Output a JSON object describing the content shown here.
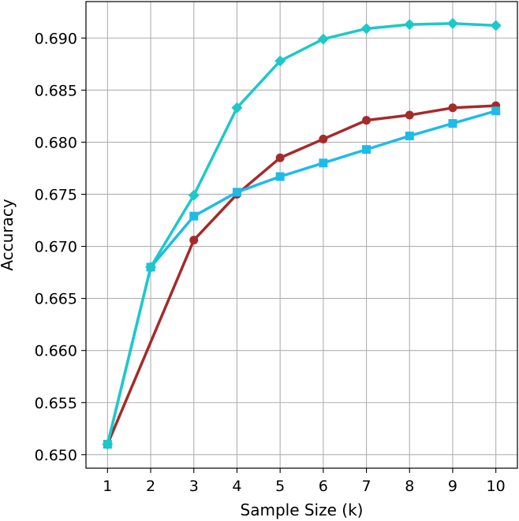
{
  "chart_data": {
    "type": "line",
    "title": "",
    "xlabel": "Sample Size (k)",
    "ylabel": "Accuracy",
    "x": [
      1,
      2,
      3,
      4,
      5,
      6,
      7,
      8,
      9,
      10
    ],
    "xlim": [
      0.5,
      10.5
    ],
    "ylim": [
      0.6487,
      0.6935
    ],
    "xticks": [
      1,
      2,
      3,
      4,
      5,
      6,
      7,
      8,
      9,
      10
    ],
    "yticks": [
      0.65,
      0.655,
      0.66,
      0.665,
      0.67,
      0.675,
      0.68,
      0.685,
      0.69
    ],
    "ytick_labels": [
      "0.650",
      "0.655",
      "0.660",
      "0.665",
      "0.670",
      "0.675",
      "0.680",
      "0.685",
      "0.690"
    ],
    "grid": true,
    "series": [
      {
        "color": "#a52a2a",
        "marker": "circle",
        "x": [
          1,
          3,
          4,
          5,
          6,
          7,
          8,
          9,
          10
        ],
        "values": [
          0.651,
          0.6706,
          0.675,
          0.6785,
          0.6803,
          0.6821,
          0.6826,
          0.6833,
          0.6835
        ]
      },
      {
        "color": "#1ebbe8",
        "marker": "square",
        "x": [
          1,
          2,
          3,
          4,
          5,
          6,
          7,
          8,
          9,
          10
        ],
        "values": [
          0.651,
          0.668,
          0.6729,
          0.6752,
          0.6767,
          0.678,
          0.6793,
          0.6806,
          0.6818,
          0.683
        ]
      },
      {
        "color": "#1ec8c8",
        "marker": "diamond",
        "x": [
          1,
          2,
          3,
          4,
          5,
          6,
          7,
          8,
          9,
          10
        ],
        "values": [
          0.651,
          0.668,
          0.6749,
          0.6833,
          0.6878,
          0.6899,
          0.6909,
          0.6913,
          0.6914,
          0.6912
        ]
      }
    ]
  }
}
